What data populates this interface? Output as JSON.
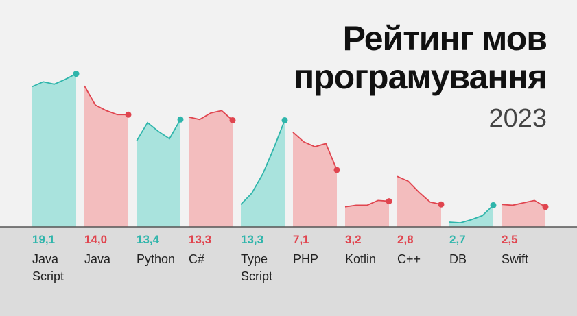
{
  "chart_data": {
    "type": "area-panels",
    "title": "Рейтинг мов програмування",
    "subtitle": "2023",
    "ylim": [
      0,
      28.3
    ],
    "series": [
      {
        "name": "Java Script",
        "color": "#2fb5ab",
        "values": [
          17.5,
          18.1,
          17.8,
          18.4,
          19.1
        ],
        "value_label": "19,1"
      },
      {
        "name": "Java",
        "color": "#e0454f",
        "values": [
          17.6,
          15.2,
          14.5,
          14.0,
          14.0
        ],
        "value_label": "14,0"
      },
      {
        "name": "Python",
        "color": "#2fb5ab",
        "values": [
          10.7,
          13.0,
          11.9,
          11.0,
          13.4
        ],
        "value_label": "13,4"
      },
      {
        "name": "C#",
        "color": "#e0454f",
        "values": [
          13.7,
          13.4,
          14.2,
          14.5,
          13.3
        ],
        "value_label": "13,3"
      },
      {
        "name": "Type Script",
        "color": "#2fb5ab",
        "values": [
          2.8,
          4.2,
          6.6,
          9.8,
          13.3
        ],
        "value_label": "13,3"
      },
      {
        "name": "PHP",
        "color": "#e0454f",
        "values": [
          11.8,
          10.6,
          10.0,
          10.4,
          7.1
        ],
        "value_label": "7,1"
      },
      {
        "name": "Kotlin",
        "color": "#e0454f",
        "values": [
          2.5,
          2.7,
          2.7,
          3.3,
          3.2
        ],
        "value_label": "3,2"
      },
      {
        "name": "C++",
        "color": "#e0454f",
        "values": [
          6.3,
          5.7,
          4.3,
          3.1,
          2.8
        ],
        "value_label": "2,8"
      },
      {
        "name": "DB",
        "color": "#2fb5ab",
        "values": [
          0.6,
          0.5,
          0.9,
          1.4,
          2.7
        ],
        "value_label": "2,7"
      },
      {
        "name": "Swift",
        "color": "#e0454f",
        "values": [
          2.8,
          2.7,
          3.0,
          3.3,
          2.5
        ],
        "value_label": "2,5"
      }
    ]
  }
}
